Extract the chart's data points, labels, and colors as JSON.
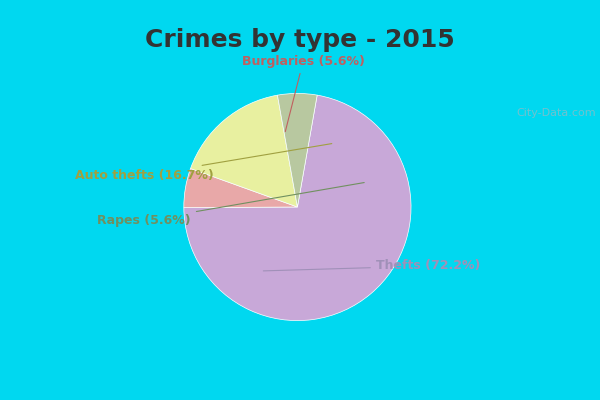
{
  "title": "Crimes by type - 2015",
  "slices": [
    {
      "label": "Thefts",
      "pct": 72.2,
      "color": "#c8a8d8"
    },
    {
      "label": "Burglaries",
      "pct": 5.6,
      "color": "#e8a8a8"
    },
    {
      "label": "Auto thefts",
      "pct": 16.7,
      "color": "#e8f0a0"
    },
    {
      "label": "Rapes",
      "pct": 5.6,
      "color": "#b8c8a0"
    }
  ],
  "bg_color_top": "#00d8f0",
  "bg_color_inner": "#d0e8d8",
  "title_fontsize": 18,
  "label_fontsize": 9,
  "label_colors": {
    "Thefts": "#a090b8",
    "Burglaries": "#c06060",
    "Auto thefts": "#a0a040",
    "Rapes": "#709060"
  },
  "watermark": "City-Data.com"
}
